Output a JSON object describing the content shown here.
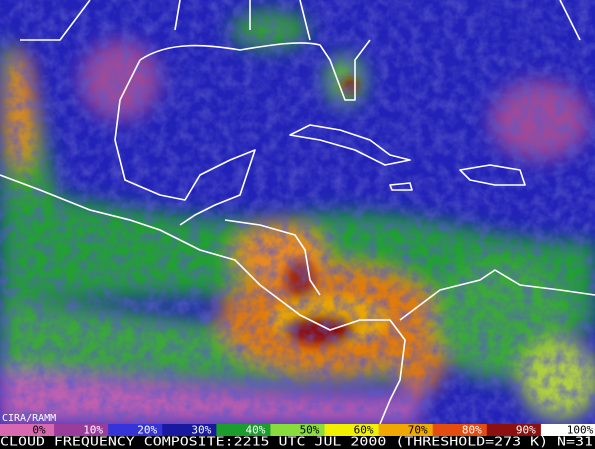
{
  "credit": "CIRA/RAMM",
  "colorbar": {
    "labels": [
      "0%",
      "10%",
      "20%",
      "30%",
      "40%",
      "50%",
      "60%",
      "70%",
      "80%",
      "90%",
      "100%"
    ],
    "colors": [
      "#d868b0",
      "#9a3c9c",
      "#3434d8",
      "#1818a0",
      "#1c9c2c",
      "#88dc3c",
      "#f0f000",
      "#f0a800",
      "#e44c10",
      "#8c1010",
      "#ffffff"
    ]
  },
  "caption": "CLOUD FREQUENCY COMPOSITE:2215 UTC JUL 2000 (THRESHOLD=273 K) N=31"
}
